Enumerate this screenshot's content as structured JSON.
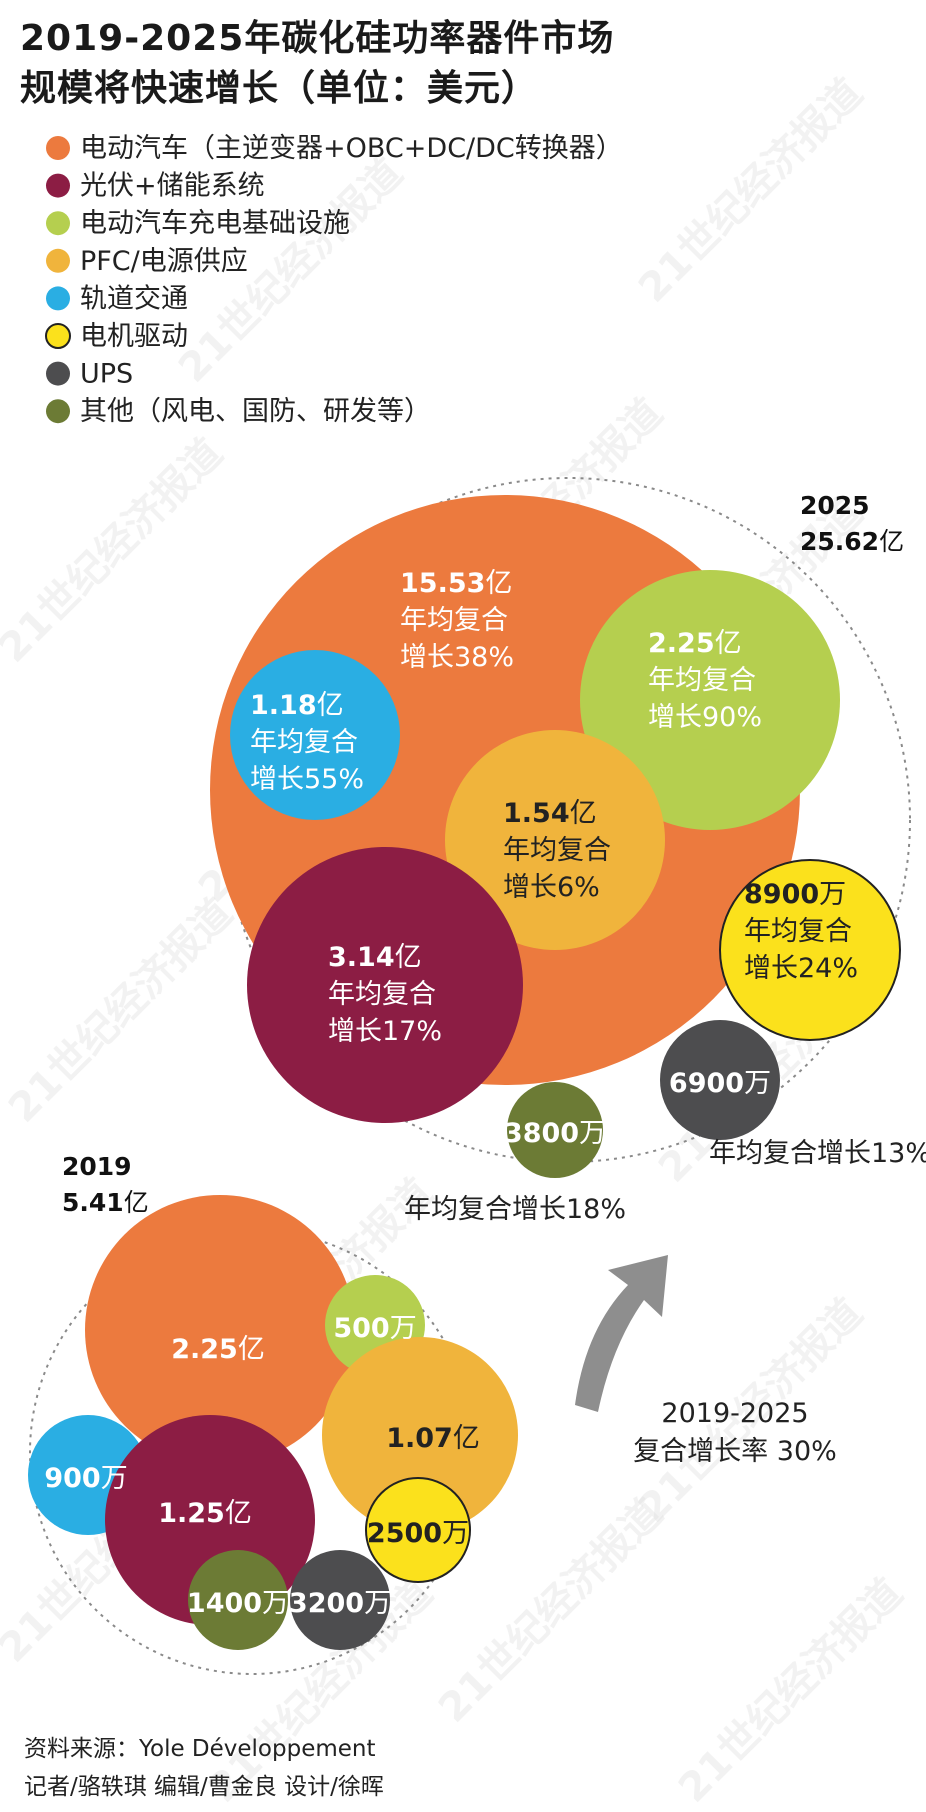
{
  "title": {
    "line1": "2019-2025年碳化硅功率器件市场",
    "line2": "规模将快速增长（单位：美元）"
  },
  "legend": [
    {
      "label": "电动汽车（主逆变器+OBC+DC/DC转换器）",
      "color": "#ec7a3e"
    },
    {
      "label": "光伏+储能系统",
      "color": "#8c1d44"
    },
    {
      "label": "电动汽车充电基础设施",
      "color": "#b5cf4f"
    },
    {
      "label": "PFC/电源供应",
      "color": "#f0b43c"
    },
    {
      "label": "轨道交通",
      "color": "#2aaee3"
    },
    {
      "label": "电机驱动",
      "color": "#fbe11c"
    },
    {
      "label": "UPS",
      "color": "#4d4d4f"
    },
    {
      "label": "其他（风电、国防、研发等）",
      "color": "#6c7b35"
    }
  ],
  "chart_data": [
    {
      "type": "bubble",
      "year": "2025",
      "total": "25.62",
      "total_unit": "亿",
      "series": [
        {
          "segment": "电动汽车（主逆变器+OBC+DC/DC转换器）",
          "value_num": "15.53",
          "value_unit": "亿",
          "growth_l1": "年均复合",
          "growth_l2": "增长38%"
        },
        {
          "segment": "电动汽车充电基础设施",
          "value_num": "2.25",
          "value_unit": "亿",
          "growth_l1": "年均复合",
          "growth_l2": "增长90%"
        },
        {
          "segment": "轨道交通",
          "value_num": "1.18",
          "value_unit": "亿",
          "growth_l1": "年均复合",
          "growth_l2": "增长55%"
        },
        {
          "segment": "PFC/电源供应",
          "value_num": "1.54",
          "value_unit": "亿",
          "growth_l1": "年均复合",
          "growth_l2": "增长6%"
        },
        {
          "segment": "光伏+储能系统",
          "value_num": "3.14",
          "value_unit": "亿",
          "growth_l1": "年均复合",
          "growth_l2": "增长17%"
        },
        {
          "segment": "电机驱动",
          "value_num": "8900",
          "value_unit": "万",
          "growth_l1": "年均复合",
          "growth_l2": "增长24%"
        },
        {
          "segment": "UPS",
          "value_num": "6900",
          "value_unit": "万",
          "growth": "年均复合增长13%"
        },
        {
          "segment": "其他（风电、国防、研发等）",
          "value_num": "3800",
          "value_unit": "万",
          "growth": "年均复合增长18%"
        }
      ]
    },
    {
      "type": "bubble",
      "year": "2019",
      "total": "5.41",
      "total_unit": "亿",
      "series": [
        {
          "segment": "电动汽车（主逆变器+OBC+DC/DC转换器）",
          "value_num": "2.25",
          "value_unit": "亿"
        },
        {
          "segment": "电动汽车充电基础设施",
          "value_num": "500",
          "value_unit": "万"
        },
        {
          "segment": "PFC/电源供应",
          "value_num": "1.07",
          "value_unit": "亿"
        },
        {
          "segment": "轨道交通",
          "value_num": "900",
          "value_unit": "万"
        },
        {
          "segment": "光伏+储能系统",
          "value_num": "1.25",
          "value_unit": "亿"
        },
        {
          "segment": "电机驱动",
          "value_num": "2500",
          "value_unit": "万"
        },
        {
          "segment": "其他（风电、国防、研发等）",
          "value_num": "1400",
          "value_unit": "万"
        },
        {
          "segment": "UPS",
          "value_num": "3200",
          "value_unit": "万"
        }
      ]
    }
  ],
  "cagr": {
    "line1": "2019-2025",
    "line2": "复合增长率 30%"
  },
  "watermark": "21世纪经济报道",
  "footer": {
    "source": "资料来源：Yole Développement",
    "credits": "记者/骆轶琪  编辑/曹金良 设计/徐晖"
  }
}
